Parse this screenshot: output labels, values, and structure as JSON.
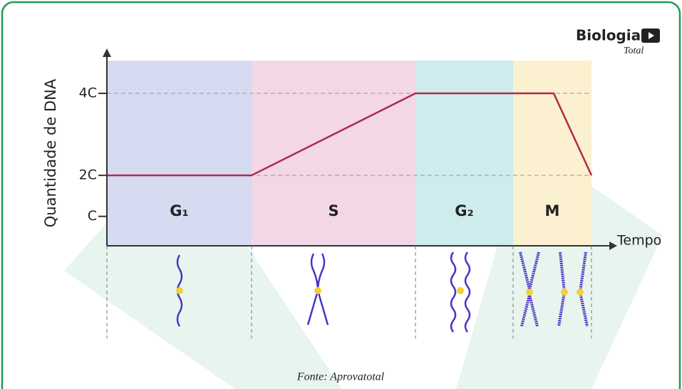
{
  "chart_data": {
    "type": "line",
    "logo": {
      "title": "Biologia",
      "subtitle": "Total"
    },
    "ylabel": "Quantidade de DNA",
    "xlabel": "Tempo",
    "source": "Fonte: Aprovatotal",
    "xlim": [
      0,
      680
    ],
    "ylim": [
      0.3,
      4.8
    ],
    "yticks": [
      {
        "value": 1,
        "label": "C"
      },
      {
        "value": 2,
        "label": "2C"
      },
      {
        "value": 4,
        "label": "4C"
      }
    ],
    "phases": [
      {
        "name": "G₁",
        "start": 0,
        "end": 203,
        "color": "#d6dbf1"
      },
      {
        "name": "S",
        "start": 203,
        "end": 433,
        "color": "#f3d7e7"
      },
      {
        "name": "G₂",
        "start": 433,
        "end": 570,
        "color": "#ceecee"
      },
      {
        "name": "M",
        "start": 570,
        "end": 680,
        "color": "#fbf1d0"
      }
    ],
    "line": {
      "color": "#b3294c",
      "x": [
        0,
        203,
        433,
        627,
        680
      ],
      "values": [
        2,
        2,
        4,
        4,
        2
      ]
    },
    "grid": true
  }
}
